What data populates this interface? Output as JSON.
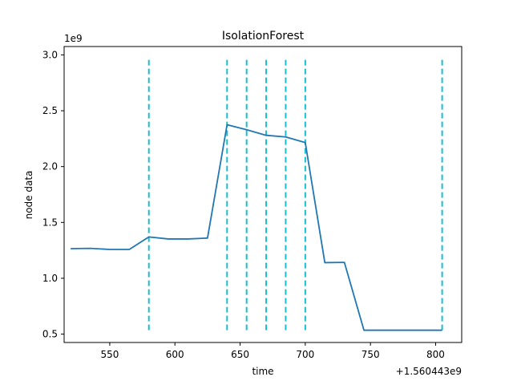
{
  "chart_data": {
    "type": "line",
    "title": "IsolationForest",
    "xlabel": "time",
    "ylabel": "node data",
    "x_offset_label": "+1.560443e9",
    "y_scale_label": "1e9",
    "xlim": [
      515,
      820
    ],
    "ylim": [
      0.425,
      3.075
    ],
    "x_ticks": [
      550,
      600,
      650,
      700,
      750,
      800
    ],
    "x_tick_labels": [
      "550",
      "600",
      "650",
      "700",
      "750",
      "800"
    ],
    "y_ticks": [
      0.5,
      1.0,
      1.5,
      2.0,
      2.5,
      3.0
    ],
    "y_tick_labels": [
      "0.5",
      "1.0",
      "1.5",
      "2.0",
      "2.5",
      "3.0"
    ],
    "grid": false,
    "series": [
      {
        "color": "#1f77b4",
        "x": [
          520,
          535,
          550,
          565,
          580,
          595,
          610,
          625,
          640,
          655,
          670,
          685,
          700,
          715,
          730,
          745,
          760,
          775,
          790,
          805
        ],
        "y": [
          1.265,
          1.268,
          1.258,
          1.258,
          1.37,
          1.352,
          1.352,
          1.36,
          2.375,
          2.33,
          2.28,
          2.265,
          2.215,
          1.14,
          1.142,
          0.535,
          0.535,
          0.535,
          0.535,
          0.535
        ]
      }
    ],
    "vlines": {
      "color": "#17becf",
      "style": "dashed",
      "x": [
        580,
        640,
        655,
        670,
        685,
        700,
        805
      ],
      "ymin": 0.535,
      "ymax": 2.975
    }
  }
}
